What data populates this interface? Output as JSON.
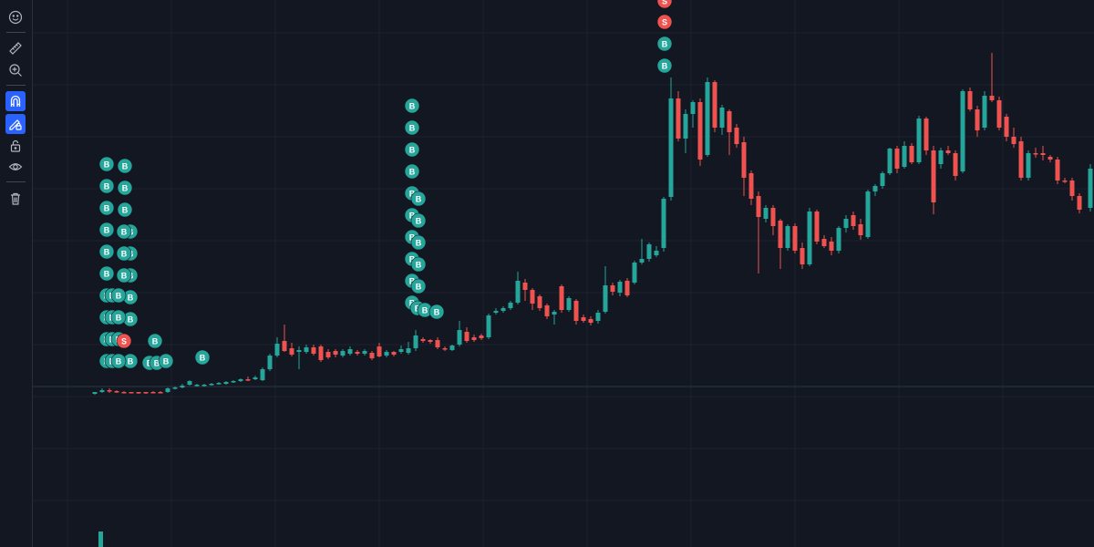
{
  "colors": {
    "background": "#131722",
    "grid": "#1e2230",
    "up": "#26a69a",
    "down": "#ef5350",
    "buy_marker": "#26a69a",
    "sell_marker": "#ef5350",
    "active_tool": "#2962ff",
    "icon": "#b2b5be"
  },
  "toolbar": {
    "tools": [
      {
        "icon": "emoji-icon",
        "active": false
      },
      {
        "icon": "ruler-icon",
        "active": false
      },
      {
        "icon": "zoom-in-icon",
        "active": false
      },
      {
        "icon": "magnet-icon",
        "active": true
      },
      {
        "icon": "lock-drawing-icon",
        "active": true
      },
      {
        "icon": "lock-icon",
        "active": false
      },
      {
        "icon": "eye-icon",
        "active": false
      },
      {
        "icon": "trash-icon",
        "active": false
      }
    ]
  },
  "chart": {
    "buy_label": "B",
    "sell_label": "S"
  }
}
